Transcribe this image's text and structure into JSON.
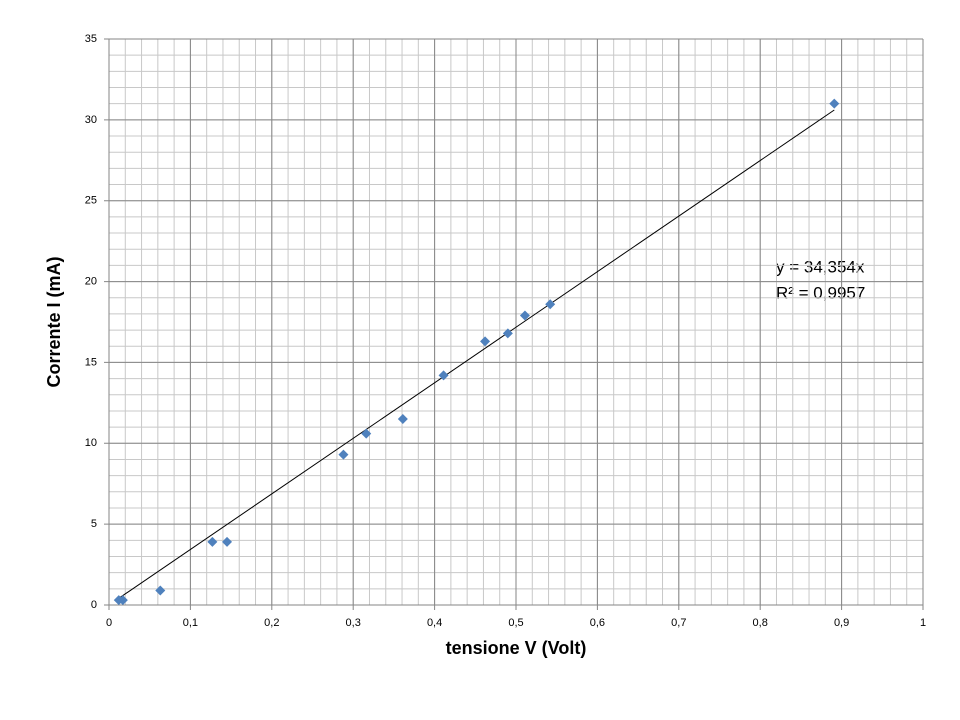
{
  "chart_data": {
    "type": "scatter",
    "x_label": "tensione V (Volt)",
    "y_label": "Corrente I (mA)",
    "series": [
      {
        "color": "#4f81bd",
        "x": [
          0.012,
          0.017,
          0.063,
          0.127,
          0.145,
          0.288,
          0.316,
          0.361,
          0.411,
          0.462,
          0.49,
          0.511,
          0.542,
          0.891
        ],
        "values": [
          0.3,
          0.3,
          0.9,
          3.9,
          3.9,
          9.3,
          10.6,
          11.5,
          14.2,
          16.3,
          16.8,
          17.9,
          18.6,
          31.0
        ]
      }
    ],
    "trendline": {
      "slope": 34.354,
      "color": "#000000",
      "equation": "y = 34,354x",
      "r_squared_label": "R² = 0,9957"
    },
    "xlim": [
      0,
      1
    ],
    "xticks": [
      0,
      {
        "value": 0.1,
        "label": "0,1"
      },
      {
        "value": 0.2,
        "label": "0,2"
      },
      {
        "value": 0.3,
        "label": "0,3"
      },
      {
        "value": 0.4,
        "label": "0,4"
      },
      {
        "value": 0.5,
        "label": "0,5"
      },
      {
        "value": 0.6,
        "label": "0,6"
      },
      {
        "value": 0.7,
        "label": "0,7"
      },
      {
        "value": 0.8,
        "label": "0,8"
      },
      {
        "value": 0.9,
        "label": "0,9"
      },
      1
    ],
    "ylim": [
      0,
      35
    ],
    "yticks": [
      0,
      5,
      10,
      15,
      20,
      25,
      30,
      35
    ],
    "grid": true,
    "minor_grid": {
      "x": 0.02,
      "y": 1
    }
  }
}
